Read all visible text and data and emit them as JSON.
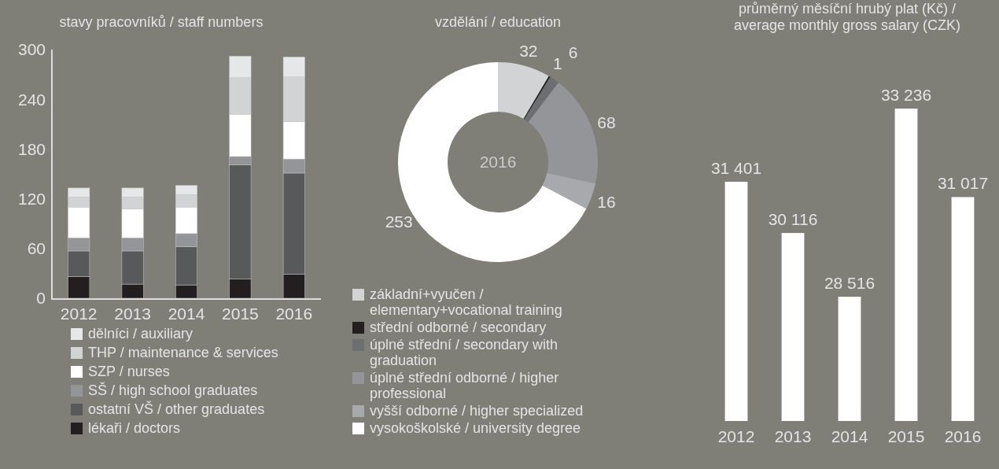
{
  "chart_data": [
    {
      "type": "bar",
      "title": "stavy pracovníků / staff numbers",
      "categories": [
        "2012",
        "2013",
        "2014",
        "2015",
        "2016"
      ],
      "stacked": true,
      "ylim": [
        0,
        300
      ],
      "yticks": [
        0,
        60,
        120,
        180,
        240,
        300
      ],
      "grid": false,
      "legend": "bottom",
      "series": [
        {
          "name": "lékaři / doctors",
          "color": "#231f20",
          "values": [
            26,
            17,
            16,
            23,
            29
          ]
        },
        {
          "name": "ostatní VŠ / other graduates",
          "color": "#58595b",
          "values": [
            31,
            40,
            46,
            138,
            122
          ]
        },
        {
          "name": "SŠ / high school graduates",
          "color": "#939598",
          "values": [
            16,
            16,
            16,
            10,
            17
          ]
        },
        {
          "name": "SZP / nurses",
          "color": "#ffffff",
          "values": [
            37,
            35,
            32,
            51,
            45
          ]
        },
        {
          "name": "THP / maintenance & services",
          "color": "#d1d3d4",
          "values": [
            12,
            14,
            15,
            44,
            54
          ]
        },
        {
          "name": "dělníci / auxiliary",
          "color": "#e6e7e8",
          "values": [
            11,
            11,
            11,
            26,
            24
          ]
        }
      ]
    },
    {
      "type": "donut",
      "title": "vzdělání / education",
      "categories": [
        "základní+vyučen / elementary+vocational training",
        "střední odborné / secondary",
        "úplné střední / secondary with graduation",
        "úplné střední odborné / higher professional",
        "vyšší odborné / higher specialized",
        "vysokoškolské / university degree"
      ],
      "values": [
        32,
        1,
        6,
        68,
        16,
        253
      ],
      "colors": [
        "#d1d3d4",
        "#231f20",
        "#6d6e71",
        "#939598",
        "#a7a9ac",
        "#ffffff"
      ],
      "data_labels": true,
      "legend": "bottom",
      "annotations": [
        "2016"
      ]
    },
    {
      "type": "bar",
      "title": "průměrný měsíční hrubý plat (Kč) / average monthly gross salary (CZK)",
      "categories": [
        "2012",
        "2013",
        "2014",
        "2015",
        "2016"
      ],
      "values": [
        31401,
        30116,
        28516,
        33236,
        31017
      ],
      "value_labels": [
        "31 401",
        "30 116",
        "28 516",
        "33 236",
        "31 017"
      ],
      "color": "#ffffff",
      "ylim": [
        25400,
        33236
      ],
      "tick_labels": "x"
    }
  ]
}
